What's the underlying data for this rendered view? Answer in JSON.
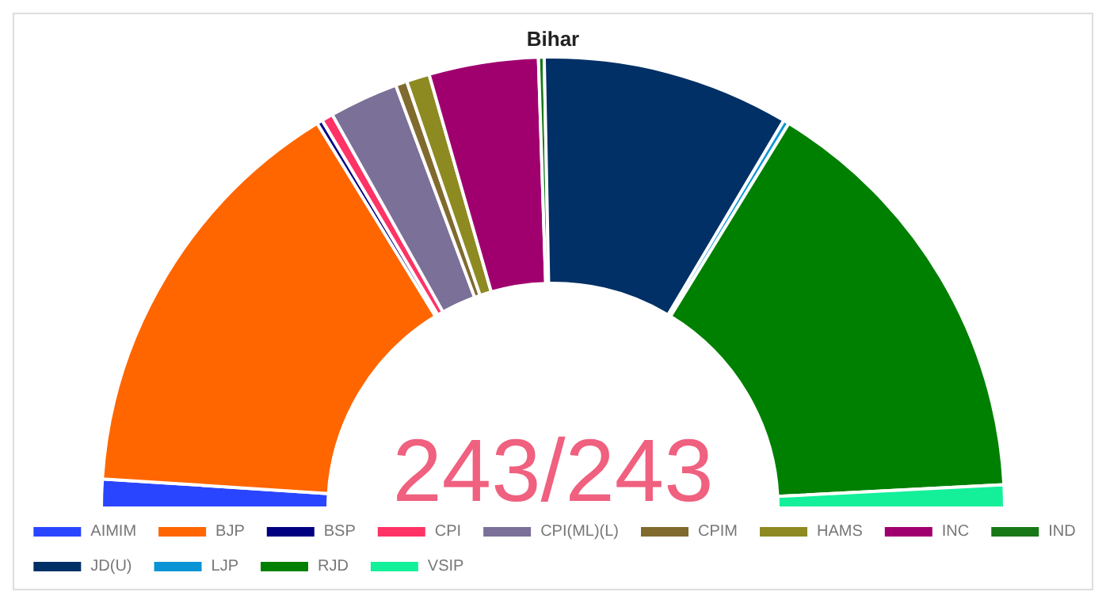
{
  "chart_data": {
    "type": "donut",
    "title": "Bihar",
    "categories": [
      "AIMIM",
      "BJP",
      "BSP",
      "CPI",
      "CPI(ML)(L)",
      "CPIM",
      "HAMS",
      "INC",
      "IND",
      "JD(U)",
      "LJP",
      "RJD",
      "VSIP"
    ],
    "values": [
      2.06,
      30.45,
      0.41,
      0.82,
      4.94,
      0.82,
      1.65,
      7.82,
      0.41,
      17.7,
      0.41,
      30.86,
      1.65
    ],
    "colors": [
      "#2a45ff",
      "#ff6600",
      "#000080",
      "#ff3366",
      "#7a7098",
      "#806a2e",
      "#8e8a22",
      "#a0006e",
      "#187818",
      "#003066",
      "#0a94d6",
      "#008000",
      "#14f09a"
    ],
    "legend": "bottom",
    "annotations": [
      "243/243"
    ]
  }
}
